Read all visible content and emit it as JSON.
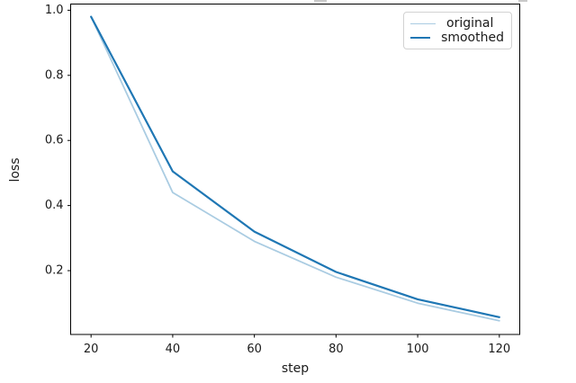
{
  "chart_data": {
    "type": "line",
    "title": "",
    "xlabel": "step",
    "ylabel": "loss",
    "x": [
      20,
      40,
      60,
      80,
      100,
      120
    ],
    "series": [
      {
        "name": "original",
        "color": "#aacce2",
        "values": [
          0.98,
          0.44,
          0.29,
          0.18,
          0.1,
          0.046
        ]
      },
      {
        "name": "smoothed",
        "color": "#1f77b4",
        "values": [
          0.98,
          0.505,
          0.32,
          0.196,
          0.112,
          0.057
        ]
      }
    ],
    "xticks": {
      "values": [
        20,
        40,
        60,
        80,
        100,
        120
      ],
      "labels": [
        "20",
        "40",
        "60",
        "80",
        "100",
        "120"
      ]
    },
    "yticks": {
      "values": [
        0.2,
        0.4,
        0.6,
        0.8,
        1.0
      ],
      "labels": [
        "0.2",
        "0.4",
        "0.6",
        "0.8",
        "1.0"
      ]
    },
    "xlim": [
      15,
      125
    ],
    "ylim": [
      0.004,
      1.019
    ],
    "grid": false,
    "legend": {
      "position": "upper right",
      "entries": [
        "original",
        "smoothed"
      ]
    },
    "colors": {
      "spine": "#000000",
      "tick_label": "#1a1a1a",
      "background": "#ffffff"
    }
  }
}
